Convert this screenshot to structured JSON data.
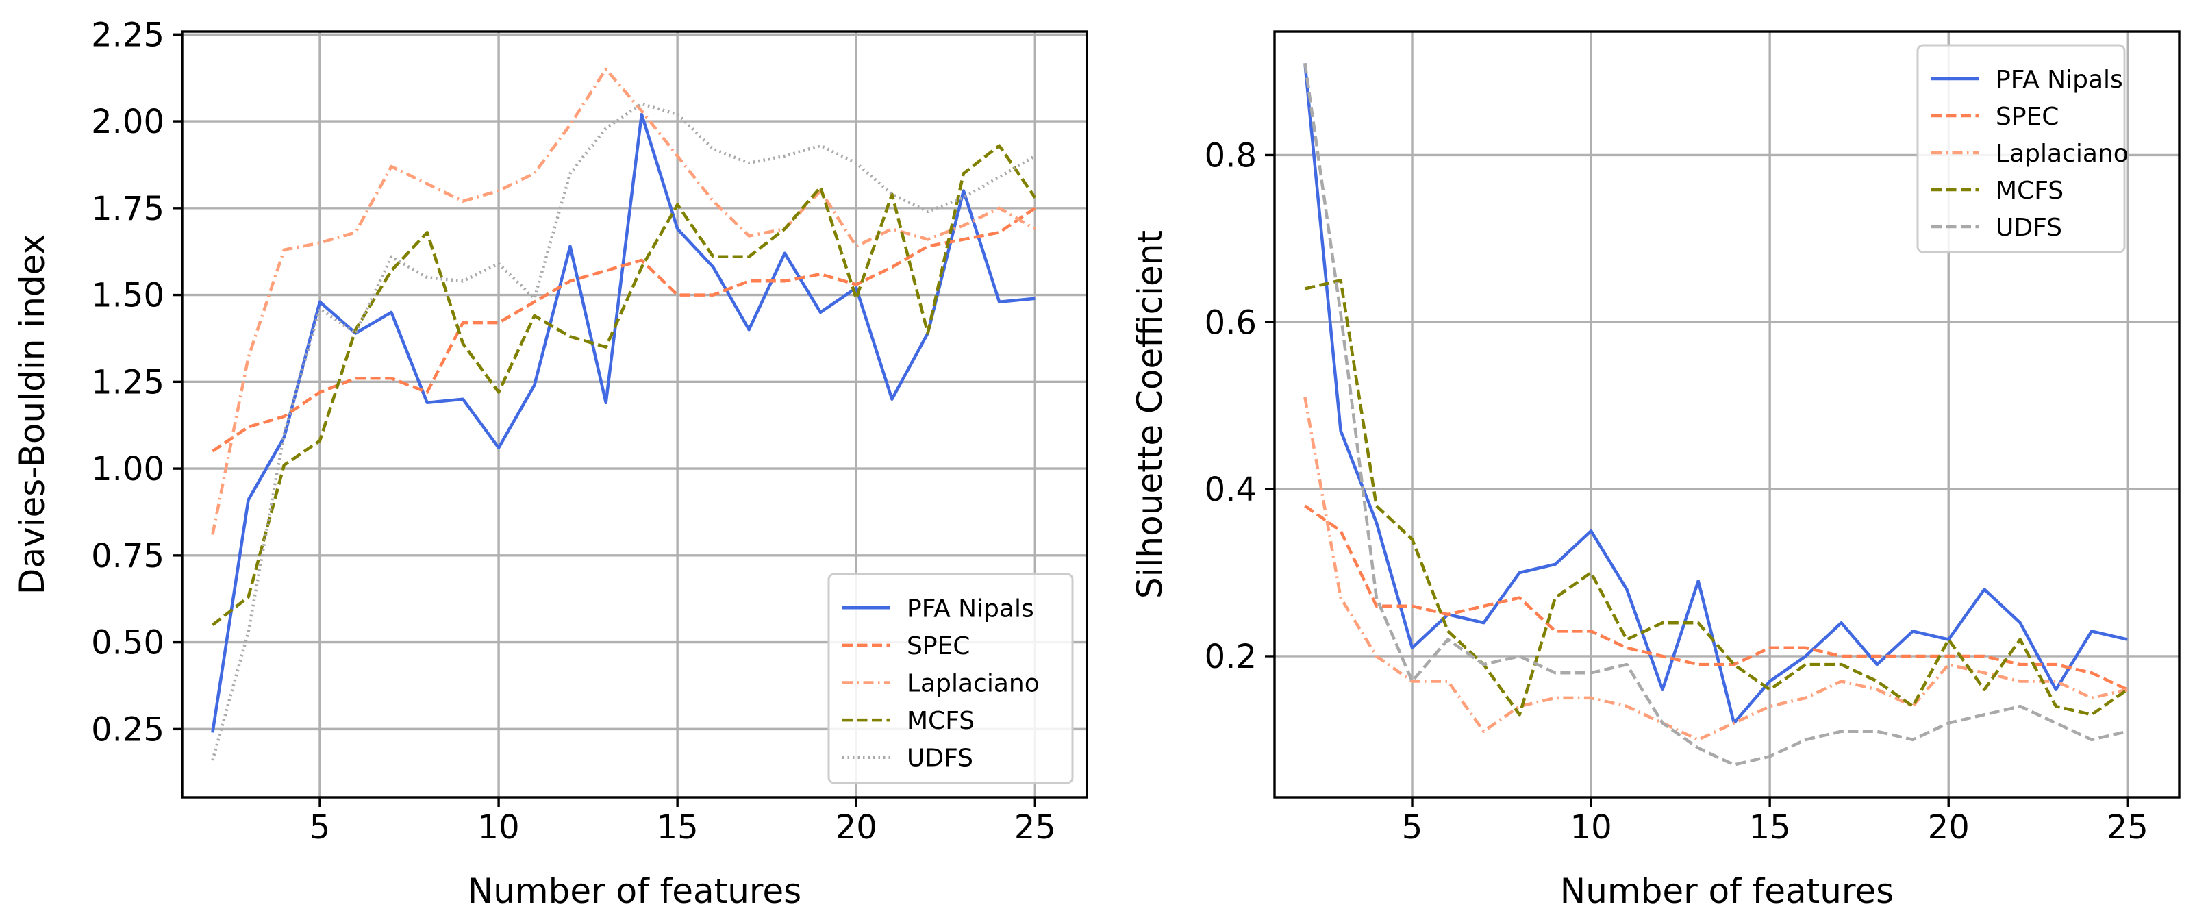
{
  "colors": {
    "pfa": "#4169e1",
    "spec": "#ff7f50",
    "laplaciano": "#ffa07a",
    "mcfs": "#808000",
    "udfs": "#a9a9a9",
    "grid": "#b0b0b0",
    "axis": "#000000"
  },
  "chart_data": [
    {
      "type": "line",
      "title": "",
      "xlabel": "Number of features",
      "ylabel": "Davies-Bouldin index",
      "xlim": [
        1.15,
        26.45
      ],
      "ylim": [
        0.0535,
        2.2585
      ],
      "xticks": [
        5,
        10,
        15,
        20,
        25
      ],
      "xtick_labels": [
        "5",
        "10",
        "15",
        "20",
        "25"
      ],
      "yticks": [
        0.25,
        0.5,
        0.75,
        1.0,
        1.25,
        1.5,
        1.75,
        2.0,
        2.25
      ],
      "ytick_labels": [
        "0.25",
        "0.50",
        "0.75",
        "1.00",
        "1.25",
        "1.50",
        "1.75",
        "2.00",
        "2.25"
      ],
      "grid": true,
      "legend": "lower-right",
      "x": [
        2,
        3,
        4,
        5,
        6,
        7,
        8,
        9,
        10,
        11,
        12,
        13,
        14,
        15,
        16,
        17,
        18,
        19,
        20,
        21,
        22,
        23,
        24,
        25
      ],
      "series": [
        {
          "key": "pfa",
          "name": "PFA Nipals",
          "dash": "solid",
          "values": [
            0.24,
            0.91,
            1.09,
            1.48,
            1.39,
            1.45,
            1.19,
            1.2,
            1.06,
            1.24,
            1.64,
            1.19,
            2.02,
            1.69,
            1.58,
            1.4,
            1.62,
            1.45,
            1.52,
            1.2,
            1.39,
            1.8,
            1.48,
            1.49
          ]
        },
        {
          "key": "spec",
          "name": "SPEC",
          "dash": "dashed",
          "values": [
            1.05,
            1.12,
            1.15,
            1.22,
            1.26,
            1.26,
            1.22,
            1.42,
            1.42,
            1.48,
            1.54,
            1.57,
            1.6,
            1.5,
            1.5,
            1.54,
            1.54,
            1.56,
            1.53,
            1.58,
            1.64,
            1.66,
            1.68,
            1.75
          ]
        },
        {
          "key": "laplaciano",
          "name": "Laplaciano",
          "dash": "dashdot",
          "values": [
            0.81,
            1.32,
            1.63,
            1.65,
            1.68,
            1.87,
            1.82,
            1.77,
            1.8,
            1.85,
            1.99,
            2.15,
            2.03,
            1.9,
            1.77,
            1.67,
            1.69,
            1.8,
            1.64,
            1.69,
            1.66,
            1.7,
            1.75,
            1.69
          ]
        },
        {
          "key": "mcfs",
          "name": "MCFS",
          "dash": "dashed",
          "values": [
            0.55,
            0.63,
            1.01,
            1.08,
            1.4,
            1.57,
            1.68,
            1.36,
            1.22,
            1.44,
            1.38,
            1.35,
            1.58,
            1.76,
            1.61,
            1.61,
            1.69,
            1.81,
            1.49,
            1.79,
            1.39,
            1.85,
            1.93,
            1.78
          ]
        },
        {
          "key": "udfs",
          "name": "UDFS",
          "dash": "dotted",
          "values": [
            0.16,
            0.53,
            1.1,
            1.46,
            1.39,
            1.61,
            1.55,
            1.54,
            1.59,
            1.49,
            1.85,
            1.98,
            2.05,
            2.02,
            1.92,
            1.88,
            1.9,
            1.93,
            1.88,
            1.79,
            1.74,
            1.78,
            1.84,
            1.9
          ]
        }
      ]
    },
    {
      "type": "line",
      "title": "",
      "xlabel": "Number of features",
      "ylabel": "Silhouette Coefficient",
      "xlim": [
        1.15,
        26.45
      ],
      "ylim": [
        0.031,
        0.948
      ],
      "xticks": [
        5,
        10,
        15,
        20,
        25
      ],
      "xtick_labels": [
        "5",
        "10",
        "15",
        "20",
        "25"
      ],
      "yticks": [
        0.2,
        0.4,
        0.6,
        0.8
      ],
      "ytick_labels": [
        "0.2",
        "0.4",
        "0.6",
        "0.8"
      ],
      "grid": true,
      "legend": "upper-right",
      "x": [
        2,
        3,
        4,
        5,
        6,
        7,
        8,
        9,
        10,
        11,
        12,
        13,
        14,
        15,
        16,
        17,
        18,
        19,
        20,
        21,
        22,
        23,
        24,
        25
      ],
      "series": [
        {
          "key": "pfa",
          "name": "PFA Nipals",
          "dash": "solid",
          "values": [
            0.91,
            0.47,
            0.36,
            0.21,
            0.25,
            0.24,
            0.3,
            0.31,
            0.35,
            0.28,
            0.16,
            0.29,
            0.12,
            0.17,
            0.2,
            0.24,
            0.19,
            0.23,
            0.22,
            0.28,
            0.24,
            0.16,
            0.23,
            0.22
          ]
        },
        {
          "key": "spec",
          "name": "SPEC",
          "dash": "dashed",
          "values": [
            0.38,
            0.35,
            0.26,
            0.26,
            0.25,
            0.26,
            0.27,
            0.23,
            0.23,
            0.21,
            0.2,
            0.19,
            0.19,
            0.21,
            0.21,
            0.2,
            0.2,
            0.2,
            0.2,
            0.2,
            0.19,
            0.19,
            0.18,
            0.16
          ]
        },
        {
          "key": "laplaciano",
          "name": "Laplaciano",
          "dash": "dashdot",
          "values": [
            0.51,
            0.27,
            0.2,
            0.17,
            0.17,
            0.11,
            0.14,
            0.15,
            0.15,
            0.14,
            0.12,
            0.1,
            0.12,
            0.14,
            0.15,
            0.17,
            0.16,
            0.14,
            0.19,
            0.18,
            0.17,
            0.17,
            0.15,
            0.16
          ]
        },
        {
          "key": "mcfs",
          "name": "MCFS",
          "dash": "dashed",
          "values": [
            0.64,
            0.65,
            0.38,
            0.34,
            0.23,
            0.19,
            0.13,
            0.27,
            0.3,
            0.22,
            0.24,
            0.24,
            0.19,
            0.16,
            0.19,
            0.19,
            0.17,
            0.14,
            0.22,
            0.16,
            0.22,
            0.14,
            0.13,
            0.16
          ]
        },
        {
          "key": "udfs",
          "name": "UDFS",
          "dash": "dashed",
          "values": [
            0.91,
            0.61,
            0.27,
            0.17,
            0.22,
            0.19,
            0.2,
            0.18,
            0.18,
            0.19,
            0.12,
            0.09,
            0.07,
            0.08,
            0.1,
            0.11,
            0.11,
            0.1,
            0.12,
            0.13,
            0.14,
            0.12,
            0.1,
            0.11
          ]
        }
      ]
    }
  ]
}
